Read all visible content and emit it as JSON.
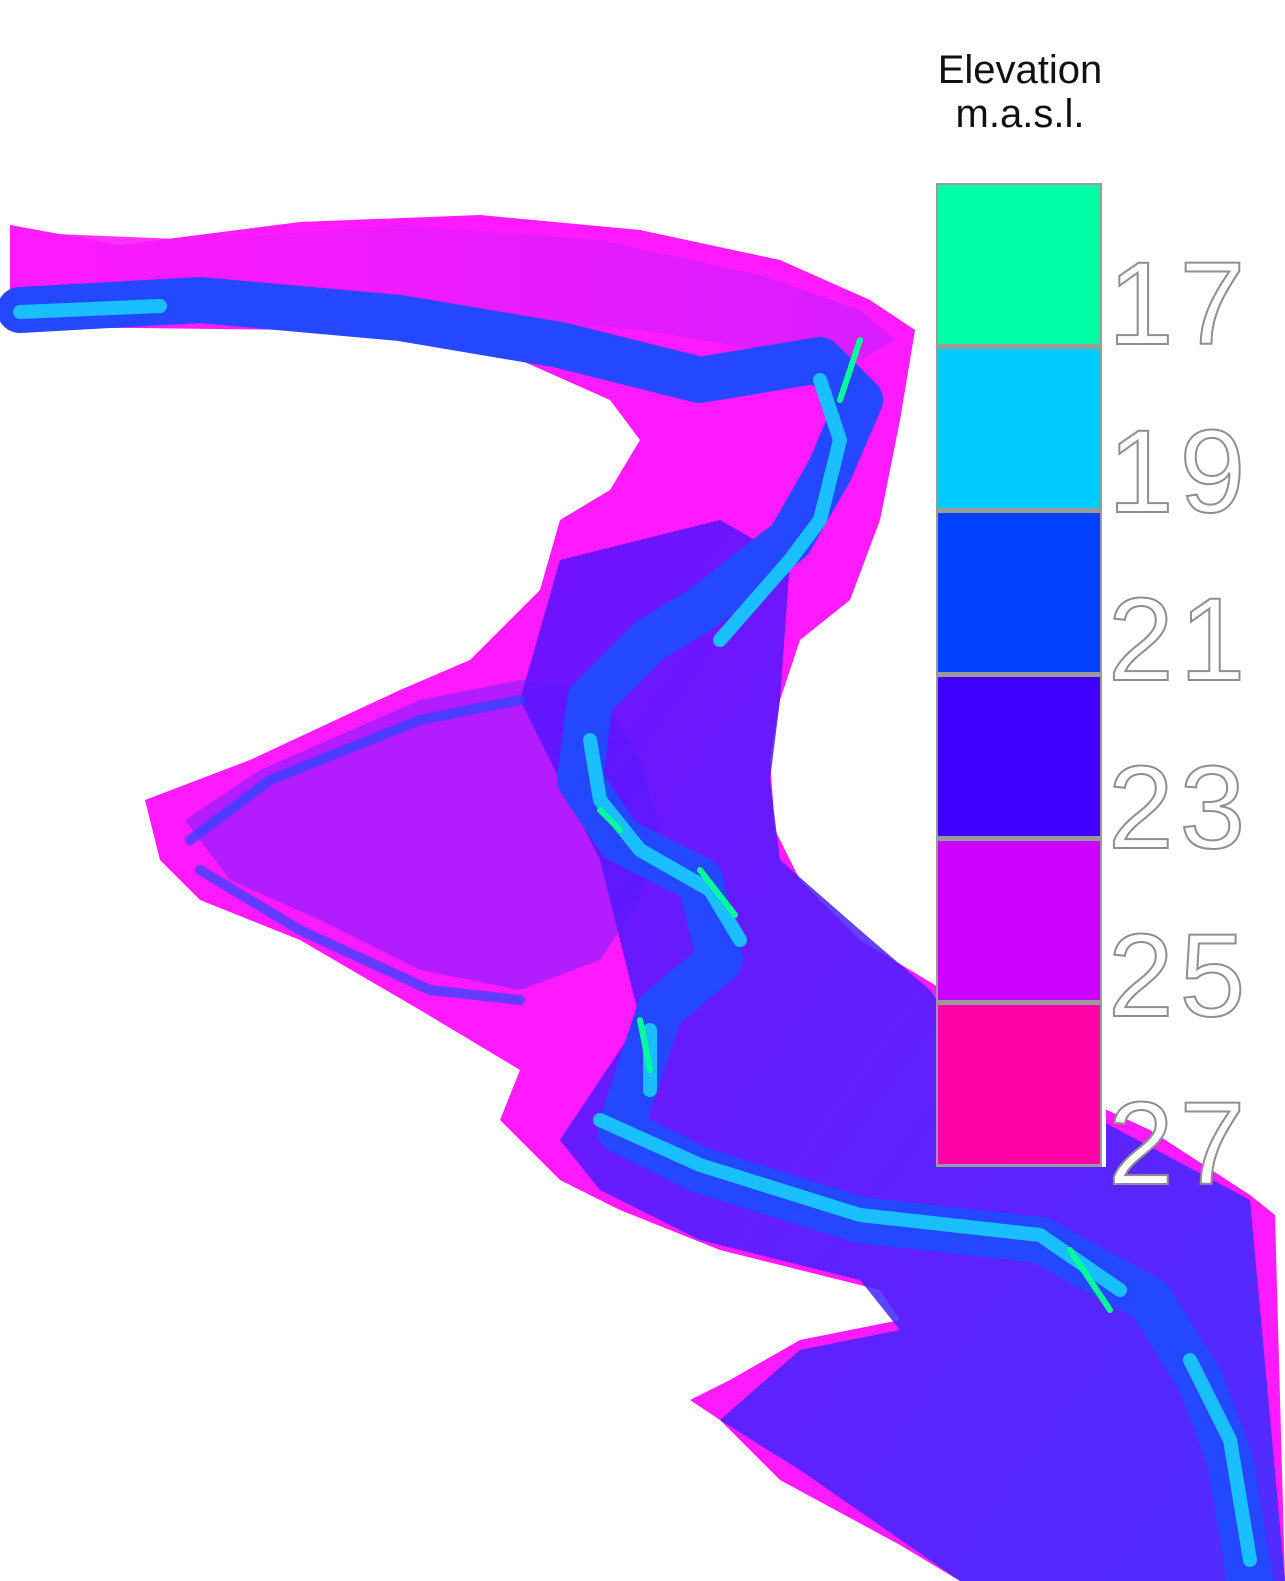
{
  "legend": {
    "title_line1": "Elevation",
    "title_line2": "m.a.s.l.",
    "entries": [
      {
        "label": "17",
        "color": "#00ffa6"
      },
      {
        "label": "19",
        "color": "#00ccff"
      },
      {
        "label": "21",
        "color": "#0040ff"
      },
      {
        "label": "23",
        "color": "#4000ff"
      },
      {
        "label": "25",
        "color": "#cc00ff"
      },
      {
        "label": "27",
        "color": "#ff00a6"
      }
    ]
  },
  "map": {
    "colors": {
      "high_bank": "#ff1aff",
      "floodplain": "#b21cff",
      "mid": "#5a10ff",
      "channel": "#2448ff",
      "deep": "#19bfff",
      "deepest": "#00ff9a"
    }
  }
}
